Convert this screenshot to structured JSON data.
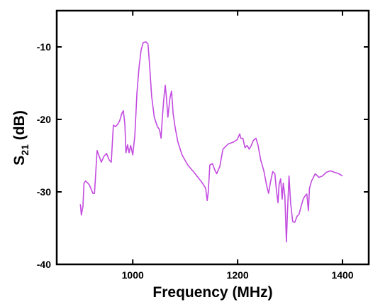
{
  "chart_data": {
    "type": "line",
    "xlabel": "Frequency (MHz)",
    "ylabel": [
      "S",
      "21",
      " (dB)"
    ],
    "xlim": [
      855,
      1450
    ],
    "ylim": [
      -40,
      -5
    ],
    "xticks": [
      1000,
      1200,
      1400
    ],
    "yticks": [
      -40,
      -30,
      -20,
      -10
    ],
    "series": [
      {
        "color": "#c34be0",
        "x": [
          900,
          902,
          905,
          907,
          910,
          917,
          924,
          927,
          932,
          936,
          940,
          945,
          950,
          955,
          959,
          963,
          967,
          971,
          975,
          979,
          982,
          985,
          987,
          990,
          993,
          996,
          1000,
          1004,
          1008,
          1012,
          1016,
          1020,
          1025,
          1029,
          1032,
          1036,
          1041,
          1047,
          1051,
          1054,
          1056,
          1059,
          1062,
          1064,
          1067,
          1071,
          1074,
          1077,
          1081,
          1086,
          1094,
          1105,
          1119,
          1132,
          1139,
          1142,
          1144,
          1147,
          1152,
          1156,
          1160,
          1166,
          1172,
          1182,
          1193,
          1199,
          1204,
          1206,
          1210,
          1214,
          1218,
          1222,
          1226,
          1230,
          1235,
          1239,
          1244,
          1250,
          1255,
          1259,
          1263,
          1267,
          1271,
          1274,
          1277,
          1279,
          1282,
          1285,
          1287,
          1290,
          1293,
          1295,
          1298,
          1301,
          1305,
          1309,
          1313,
          1317,
          1321,
          1325,
          1329,
          1332,
          1335,
          1337,
          1341,
          1348,
          1355,
          1362,
          1369,
          1377,
          1385,
          1393,
          1400
        ],
        "values": [
          -31.7,
          -33.2,
          -32,
          -28.8,
          -28.5,
          -29,
          -30.2,
          -30.2,
          -24.3,
          -25.1,
          -25.9,
          -25.1,
          -24.7,
          -25.6,
          -25.9,
          -20.8,
          -21,
          -20.7,
          -20.2,
          -19.2,
          -18.8,
          -20.7,
          -24.6,
          -23.5,
          -24.6,
          -23.6,
          -24.9,
          -22.2,
          -16.3,
          -12.8,
          -10.4,
          -9.4,
          -9.3,
          -9.6,
          -12.4,
          -16.8,
          -19.7,
          -21,
          -21.4,
          -22.6,
          -20.2,
          -17.3,
          -15.3,
          -16.8,
          -19.7,
          -17,
          -16.1,
          -19.2,
          -21.2,
          -23.1,
          -24.9,
          -26.3,
          -27.5,
          -28.7,
          -29.5,
          -31.2,
          -30,
          -26.3,
          -26.1,
          -26.9,
          -27.5,
          -26.5,
          -24.1,
          -23.4,
          -23.1,
          -22.8,
          -22,
          -22.6,
          -22.6,
          -23.9,
          -23.6,
          -24.1,
          -23.6,
          -22.9,
          -22.6,
          -23.6,
          -25.6,
          -27.1,
          -29,
          -30.2,
          -28.5,
          -27.2,
          -27.5,
          -29.8,
          -31.5,
          -29,
          -28.2,
          -31,
          -28.8,
          -30.5,
          -36.9,
          -32.9,
          -27.8,
          -31.5,
          -34.1,
          -34.2,
          -33.4,
          -33.1,
          -32,
          -31,
          -30.5,
          -30.3,
          -32.6,
          -29.5,
          -28.5,
          -27.5,
          -28,
          -27.8,
          -27.3,
          -27.1,
          -27.3,
          -27.5,
          -27.8
        ]
      }
    ]
  }
}
